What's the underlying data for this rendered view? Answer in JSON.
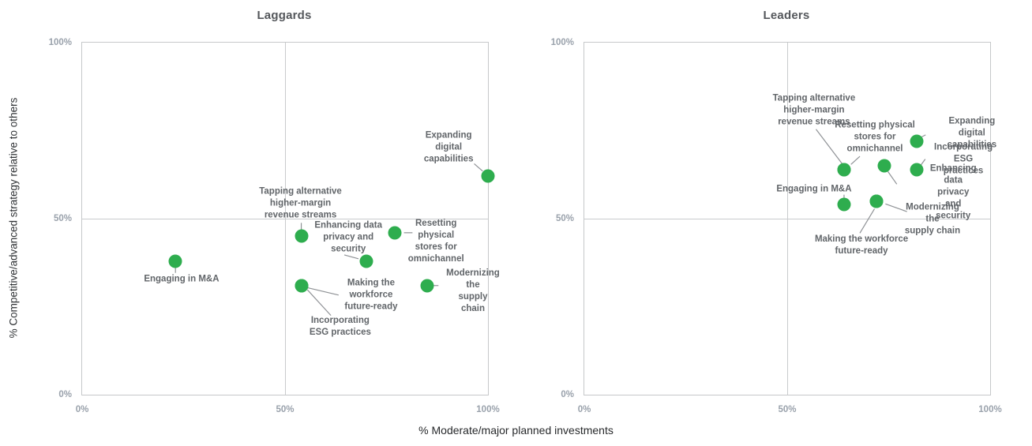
{
  "figure": {
    "x_axis_title": "% Moderate/major planned investments",
    "y_axis_title": "% Competitive/advanced strategy relative to others"
  },
  "colors": {
    "dot_green": "#2ead4e",
    "leader_line": "#8f9296",
    "point_label": "#616569",
    "tick_label": "#99a1ab",
    "panel_title": "#54575b",
    "grid": "#c9cbcd"
  },
  "chart_data": [
    {
      "type": "scatter",
      "title": "Laggards",
      "xlabel": "% Moderate/major planned investments",
      "ylabel": "% Competitive/advanced strategy relative to others",
      "xlim": [
        0,
        100
      ],
      "ylim": [
        0,
        100
      ],
      "x_ticks": [
        "0%",
        "50%",
        "100%"
      ],
      "y_ticks": [
        "100%",
        "50%",
        "0%"
      ],
      "grid": "crosshair at 50% on both axes",
      "legend": "none",
      "points": [
        {
          "label": "Engaging in M&A",
          "x": 23,
          "y": 38,
          "lines": "Engaging in M&A",
          "label_x": 24.5,
          "label_y": 32.7,
          "leader": [
            23,
            36.2,
            23,
            34.6
          ]
        },
        {
          "label": "Tapping alternative higher-margin revenue streams",
          "x": 54,
          "y": 45,
          "lines": "Tapping alternative\nhigher-margin\nrevenue streams",
          "label_x": 53.8,
          "label_y": 54.2,
          "leader": [
            54,
            48.8,
            54,
            45.8
          ]
        },
        {
          "label": "Enhancing data privacy and security",
          "x": 70,
          "y": 38,
          "lines": "Enhancing data\nprivacy and\nsecurity",
          "label_x": 65.6,
          "label_y": 44.6,
          "leader": [
            64.6,
            39.7,
            68.1,
            38.6
          ]
        },
        {
          "label": "Resetting physical stores for omnichannel",
          "x": 77,
          "y": 46,
          "lines": "Resetting physical\nstores for\nomnichannel",
          "label_x": 87.2,
          "label_y": 43.5,
          "leader": [
            79.3,
            46,
            81.4,
            46
          ]
        },
        {
          "label": "Expanding digital capabilities",
          "x": 100,
          "y": 62,
          "lines": "Expanding digital\ncapabilities",
          "label_x": 90.3,
          "label_y": 70.2,
          "leader": [
            96.6,
            65.6,
            98.7,
            63.5
          ]
        },
        {
          "label": "Making the workforce future-ready",
          "x": 54,
          "y": 31,
          "lines": "Making the\nworkforce\nfuture-ready",
          "label_x": 71.2,
          "label_y": 28.3,
          "leader": [
            55.5,
            30.4,
            63.2,
            28.3
          ]
        },
        {
          "label": "Incorporating ESG practices",
          "x": 54,
          "y": 31,
          "lines": "Incorporating\nESG practices",
          "label_x": 63.6,
          "label_y": 19.3,
          "leader": [
            55.5,
            29.8,
            61.3,
            22.5
          ]
        },
        {
          "label": "Modernizing the supply chain",
          "x": 85,
          "y": 31,
          "lines": "Modernizing the\nsupply chain",
          "label_x": 96.3,
          "label_y": 29.4,
          "leader": [
            86.6,
            31,
            87.8,
            31
          ]
        }
      ]
    },
    {
      "type": "scatter",
      "title": "Leaders",
      "xlabel": "% Moderate/major planned investments",
      "ylabel": "% Competitive/advanced strategy relative to others",
      "xlim": [
        0,
        100
      ],
      "ylim": [
        0,
        100
      ],
      "x_ticks": [
        "0%",
        "50%",
        "100%"
      ],
      "y_ticks": [
        "100%",
        "50%",
        "0%"
      ],
      "grid": "crosshair at 50% on both axes",
      "legend": "none",
      "points": [
        {
          "label": "Tapping alternative higher-margin revenue streams",
          "x": 64,
          "y": 64,
          "lines": "Tapping alternative\nhigher-margin\nrevenue streams",
          "label_x": 56.6,
          "label_y": 80.8,
          "leader": [
            57.1,
            75.4,
            63.6,
            65.5
          ]
        },
        {
          "label": "Resetting physical stores for omnichannel",
          "x": 64,
          "y": 64,
          "lines": "Resetting physical\nstores for\nomnichannel",
          "label_x": 71.6,
          "label_y": 73.1,
          "leader": [
            67.9,
            67.7,
            65.7,
            65.4
          ]
        },
        {
          "label": "Expanding digital capabilities",
          "x": 82,
          "y": 72,
          "lines": "Expanding digital\ncapabilities",
          "label_x": 95.5,
          "label_y": 74.2,
          "leader": [
            83.1,
            73.2,
            84.1,
            73.8
          ]
        },
        {
          "label": "Incorporating ESG practices",
          "x": 82,
          "y": 64,
          "lines": "Incorporating\nESG practices",
          "label_x": 93.4,
          "label_y": 66.8,
          "leader": [
            84,
            66.9,
            82.8,
            65
          ]
        },
        {
          "label": "Enhancing data privacy and security",
          "x": 74,
          "y": 65,
          "lines": "Enhancing data privacy\nand security",
          "label_x": 90.9,
          "label_y": 57.5,
          "leader": [
            74.8,
            63.4,
            77,
            59.8
          ]
        },
        {
          "label": "Engaging in M&A",
          "x": 64,
          "y": 54,
          "lines": "Engaging in M&A",
          "label_x": 56.6,
          "label_y": 58.3,
          "leader": [
            64,
            56.8,
            64,
            55.9
          ]
        },
        {
          "label": "Modernizing the supply chain",
          "x": 72,
          "y": 55,
          "lines": "Modernizing the\nsupply chain",
          "label_x": 85.8,
          "label_y": 49.8,
          "leader": [
            74.2,
            54.2,
            79.5,
            52
          ]
        },
        {
          "label": "Making the workforce future-ready",
          "x": 72,
          "y": 55,
          "lines": "Making the workforce\nfuture-ready",
          "label_x": 68.3,
          "label_y": 42.4,
          "leader": [
            71.5,
            52.8,
            67.9,
            45.9
          ]
        }
      ]
    }
  ]
}
